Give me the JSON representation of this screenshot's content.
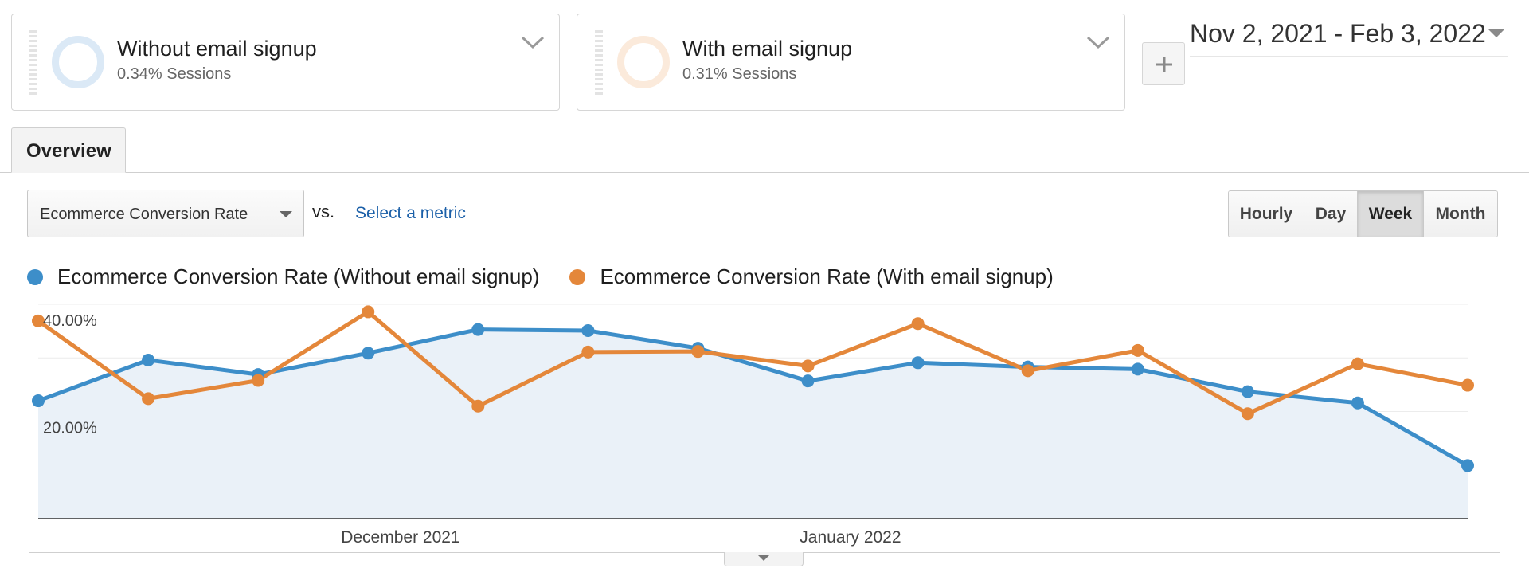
{
  "segments": [
    {
      "name": "Without email signup",
      "subtitle": "0.34% Sessions",
      "ring_color": "#dbe9f6"
    },
    {
      "name": "With email signup",
      "subtitle": "0.31% Sessions",
      "ring_color": "#fbeadb"
    }
  ],
  "date_range": "Nov 2, 2021 - Feb 3, 2022",
  "tabs": [
    {
      "label": "Overview",
      "active": true
    }
  ],
  "metric": {
    "selected": "Ecommerce Conversion Rate",
    "vs_label": "vs.",
    "compare_link": "Select a metric"
  },
  "period_buttons": [
    {
      "label": "Hourly",
      "active": false
    },
    {
      "label": "Day",
      "active": false
    },
    {
      "label": "Week",
      "active": true
    },
    {
      "label": "Month",
      "active": false
    }
  ],
  "icons": {
    "segment_chevron": "chevron-down-icon",
    "add_segment": "plus-icon",
    "date_caret": "caret-down-icon",
    "expand_chart": "caret-down-icon"
  },
  "colors": {
    "series_without": "#3d8ec9",
    "series_with": "#e4873a",
    "area_fill": "#eaf1f8",
    "link": "#1a5fa8"
  },
  "chart_data": {
    "type": "line",
    "x_labels": [
      "December 2021",
      "January 2022"
    ],
    "y_ticks": [
      "40.00%",
      "20.00%"
    ],
    "ylim": [
      0,
      40
    ],
    "grid": true,
    "series": [
      {
        "name": "Ecommerce Conversion Rate (Without email signup)",
        "color": "#3d8ec9",
        "area": true,
        "values": [
          22.0,
          29.6,
          26.9,
          30.9,
          35.3,
          35.1,
          31.8,
          25.7,
          29.1,
          28.3,
          27.9,
          23.7,
          21.6,
          9.9
        ]
      },
      {
        "name": "Ecommerce Conversion Rate (With email signup)",
        "color": "#e4873a",
        "area": false,
        "values": [
          36.9,
          22.4,
          25.8,
          38.6,
          21.0,
          31.1,
          31.2,
          28.5,
          36.4,
          27.6,
          31.4,
          19.6,
          28.9,
          24.9
        ]
      }
    ]
  }
}
